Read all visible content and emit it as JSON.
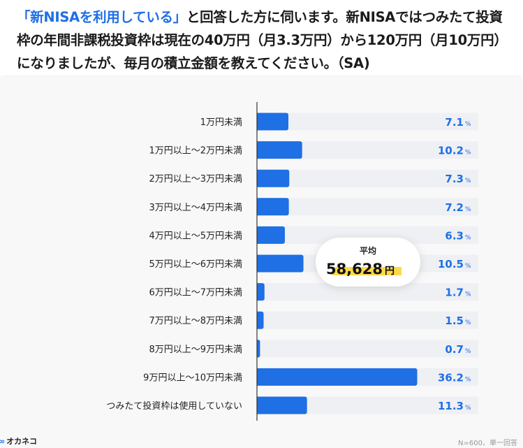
{
  "header": {
    "question_highlight": "「新NISAを利用している」",
    "question_rest": "と回答した方に伺います。新NISAではつみたて投資枠の年間非課税投資枠は現在の40万円（月3.3万円）から120万円（月10万円）になりましたが、毎月の積立金額を教えてください。（SA)"
  },
  "average": {
    "label": "平均",
    "value": "58,628",
    "unit": "円"
  },
  "footer": {
    "brand": "オカネコ",
    "note": "N=600、単一回答"
  },
  "colors": {
    "bar": "#1f6fe5",
    "track": "#eef0f3",
    "value_text": "#1f6fe5",
    "highlight": "#ffd84a"
  },
  "chart_data": {
    "type": "bar",
    "orientation": "horizontal",
    "categories": [
      "1万円未満",
      "1万円以上〜2万円未満",
      "2万円以上〜3万円未満",
      "3万円以上〜4万円未満",
      "4万円以上〜5万円未満",
      "5万円以上〜6万円未満",
      "6万円以上〜7万円未満",
      "7万円以上〜8万円未満",
      "8万円以上〜9万円未満",
      "9万円以上〜10万円未満",
      "つみたて投資枠は使用していない"
    ],
    "values": [
      7.1,
      10.2,
      7.3,
      7.2,
      6.3,
      10.5,
      1.7,
      1.5,
      0.7,
      36.2,
      11.3
    ],
    "value_labels": [
      "7.1",
      "10.2",
      "7.3",
      "7.2",
      "6.3",
      "10.5",
      "1.7",
      "1.5",
      "0.7",
      "36.2",
      "11.3"
    ],
    "unit": "%",
    "xlim": [
      0,
      50
    ]
  }
}
